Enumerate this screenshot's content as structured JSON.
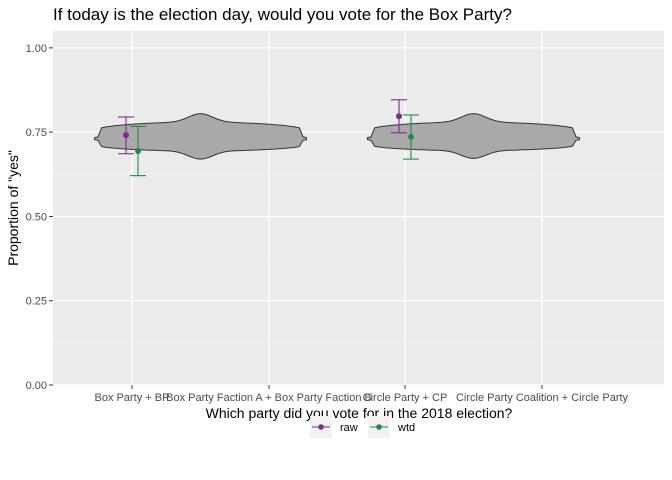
{
  "chart_data": {
    "type": "violin",
    "title": "If today is the election day, would you vote for the Box Party?",
    "xlabel": "Which party did you vote for in the 2018 election?",
    "ylabel": "Proportion of \"yes\"",
    "ylim": [
      0,
      1.05
    ],
    "yticks": [
      "0.00",
      "0.25",
      "0.50",
      "0.75",
      "1.00"
    ],
    "categories": [
      "Box Party + BP",
      "Box Party Faction A + Box Party Faction B",
      "Circle Party + CP",
      "Circle Party Coalition + Circle Party"
    ],
    "grid": true,
    "legend_position": "bottom",
    "series": [
      {
        "name": "raw",
        "color": "#7b2d8e",
        "estimates": [
          0.741,
          0.797
        ],
        "ci_low": [
          0.686,
          0.748
        ],
        "ci_high": [
          0.795,
          0.846
        ]
      },
      {
        "name": "wtd",
        "color": "#238b45",
        "estimates": [
          0.694,
          0.736
        ],
        "ci_low": [
          0.621,
          0.67
        ],
        "ci_high": [
          0.767,
          0.801
        ]
      }
    ],
    "violins": [
      {
        "center": 0.73,
        "min": 0.67,
        "max": 0.805,
        "fill": "#a9a9a9"
      },
      {
        "center": 0.73,
        "min": 0.672,
        "max": 0.805,
        "fill": "#a9a9a9"
      }
    ]
  }
}
